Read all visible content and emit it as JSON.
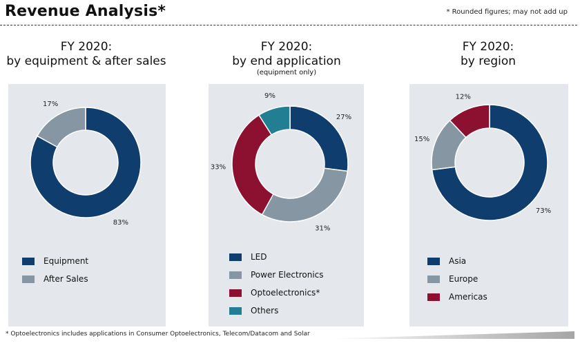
{
  "header": {
    "title": "Revenue Analysis*",
    "note": "* Rounded figures; may not add up"
  },
  "footer": {
    "note": "* Optoelectronics includes applications in Consumer Optoelectronics, Telecom/Datacom and Solar"
  },
  "chart_data": [
    {
      "type": "pie",
      "title": "FY 2020:",
      "subtitle": "by equipment & after sales",
      "note": "",
      "categories": [
        "Equipment",
        "After Sales"
      ],
      "values": [
        83,
        17
      ],
      "labels": [
        "83%",
        "17%"
      ],
      "colors": [
        "#0f3d6e",
        "#8796a3"
      ],
      "legend": "bottom-left"
    },
    {
      "type": "pie",
      "title": "FY 2020:",
      "subtitle": "by end application",
      "note": "(equipment only)",
      "categories": [
        "LED",
        "Power Electronics",
        "Optoelectronics*",
        "Others"
      ],
      "values": [
        27,
        31,
        33,
        9
      ],
      "labels": [
        "27%",
        "31%",
        "33%",
        "9%"
      ],
      "colors": [
        "#0f3d6e",
        "#8796a3",
        "#8c1131",
        "#227f93"
      ],
      "legend": "bottom-left"
    },
    {
      "type": "pie",
      "title": "FY 2020:",
      "subtitle": "by region",
      "note": "",
      "categories": [
        "Asia",
        "Europe",
        "Americas"
      ],
      "values": [
        73,
        15,
        12
      ],
      "labels": [
        "73%",
        "15%",
        "12%"
      ],
      "colors": [
        "#0f3d6e",
        "#8796a3",
        "#8c1131"
      ],
      "legend": "bottom-left"
    }
  ]
}
